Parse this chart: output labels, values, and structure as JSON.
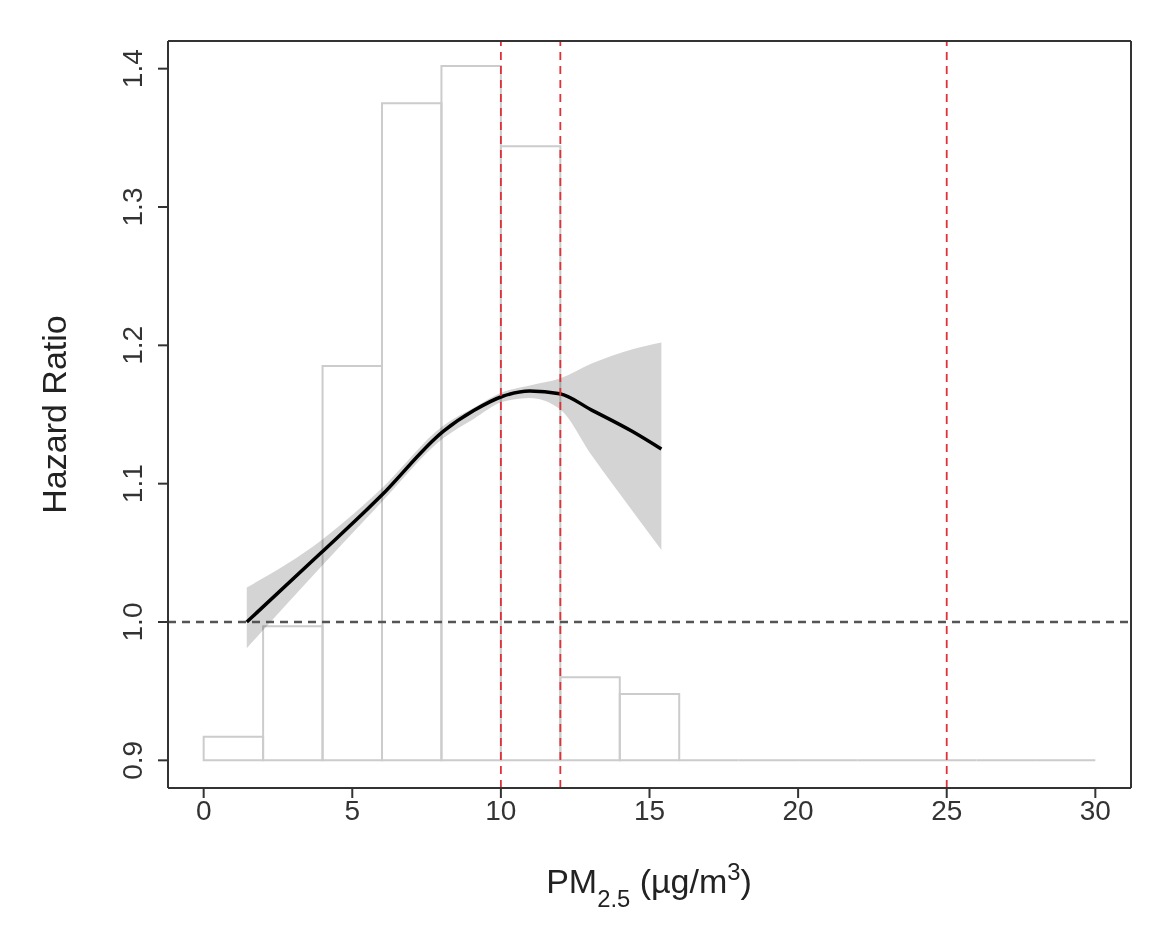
{
  "chart_data": {
    "type": "line",
    "xlabel": "PM$_{2.5}$ (µg/m$^{3}$)",
    "ylabel": "Hazard Ratio",
    "xlim": [
      -1.2,
      31.2
    ],
    "ylim": [
      0.88,
      1.42
    ],
    "xticks": [
      0,
      5,
      10,
      15,
      20,
      25,
      30
    ],
    "yticks": [
      0.9,
      {
        "value": 1,
        "label": "1.0"
      },
      1.1,
      1.2,
      1.3,
      1.4
    ],
    "grid": false,
    "legend": false,
    "series": [
      {
        "type": "histogram",
        "color": "#cccccc",
        "bins": [
          0,
          2,
          4,
          6,
          8,
          10,
          12,
          14,
          16,
          18,
          20,
          22,
          24,
          26,
          28,
          30
        ],
        "base": [
          0.9,
          0.9,
          0.9,
          0.9,
          0.9,
          0.9,
          0.9,
          0.9,
          0.9,
          0.9,
          0.9,
          0.9,
          0.9,
          0.9,
          0.9
        ],
        "values": [
          0.017,
          0.097,
          0.285,
          0.475,
          0.502,
          0.444,
          0.06,
          0.048,
          0,
          0,
          0,
          0,
          0,
          0,
          0
        ]
      },
      {
        "color": "#000000",
        "x": [
          1.45,
          3.95,
          5.96,
          8.07,
          9.1,
          10.04,
          10.97,
          11.98,
          13.07,
          14.4,
          15.4
        ],
        "values": [
          1.0,
          1.05,
          1.091,
          1.138,
          1.153,
          1.163,
          1.167,
          1.165,
          1.153,
          1.138,
          1.125
        ],
        "lower": [
          0.981,
          1.04,
          1.086,
          1.133,
          1.147,
          1.159,
          1.162,
          1.154,
          1.12,
          1.081,
          1.052
        ],
        "upper": [
          1.025,
          1.059,
          1.096,
          1.142,
          1.155,
          1.166,
          1.171,
          1.176,
          1.187,
          1.197,
          1.202
        ]
      }
    ],
    "ref_lines": [
      {
        "axis": "y",
        "value": 1.0,
        "color": "#555555",
        "line_style": "dashed"
      },
      {
        "axis": "x",
        "value": 10,
        "color": "#e0303a",
        "line_style": "dashed"
      },
      {
        "axis": "x",
        "value": 12,
        "color": "#e0303a",
        "line_style": "dashed"
      },
      {
        "axis": "x",
        "value": 25,
        "color": "#e0303a",
        "line_style": "dashed"
      }
    ]
  }
}
